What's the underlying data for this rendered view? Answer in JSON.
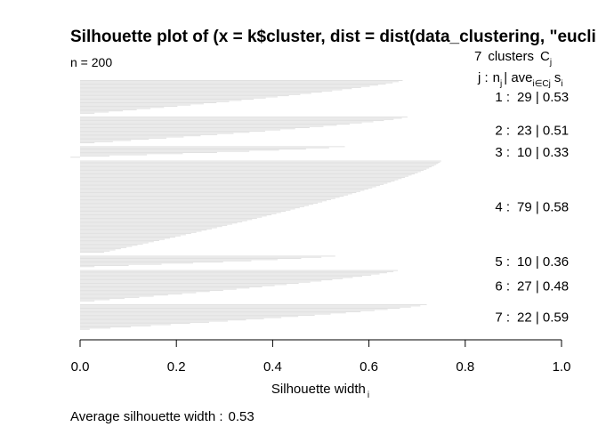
{
  "chart_data": {
    "type": "bar",
    "orientation": "horizontal",
    "title": "Silhouette plot of (x = k$cluster, dist = dist(data_clustering, \"eucli",
    "n_label": "n = 200",
    "header": {
      "count": "7",
      "clusters_word": "clusters",
      "c_letter": "C",
      "c_sub": "j",
      "j_label": "j :",
      "n_letter": "n",
      "n_sub": "j",
      "ave_word": "| ave",
      "ave_sub": "i∈Cj",
      "s_letter": "s",
      "s_sub": "i"
    },
    "xlabel": "Silhouette width",
    "xlabel_sub": "i",
    "xlim": [
      0,
      1
    ],
    "xticks": [
      "0.0",
      "0.2",
      "0.4",
      "0.6",
      "0.8",
      "1.0"
    ],
    "average_label": "Average silhouette width :",
    "average_value": "0.53",
    "clusters": [
      {
        "j": "1 :",
        "n": "29",
        "ave": "0.53",
        "max": 0.67,
        "min": 0.03
      },
      {
        "j": "2 :",
        "n": "23",
        "ave": "0.51",
        "max": 0.68,
        "min": 0.03
      },
      {
        "j": "3 :",
        "n": "10",
        "ave": "0.33",
        "max": 0.55,
        "min": -0.02
      },
      {
        "j": "4 :",
        "n": "79",
        "ave": "0.58",
        "max": 0.75,
        "min": 0.05
      },
      {
        "j": "5 :",
        "n": "10",
        "ave": "0.36",
        "max": 0.53,
        "min": 0.03
      },
      {
        "j": "6 :",
        "n": "27",
        "ave": "0.48",
        "max": 0.66,
        "min": 0.03
      },
      {
        "j": "7 :",
        "n": "22",
        "ave": "0.59",
        "max": 0.72,
        "min": 0.02
      }
    ],
    "bar_color": "#e0e0e0",
    "grid": false
  }
}
